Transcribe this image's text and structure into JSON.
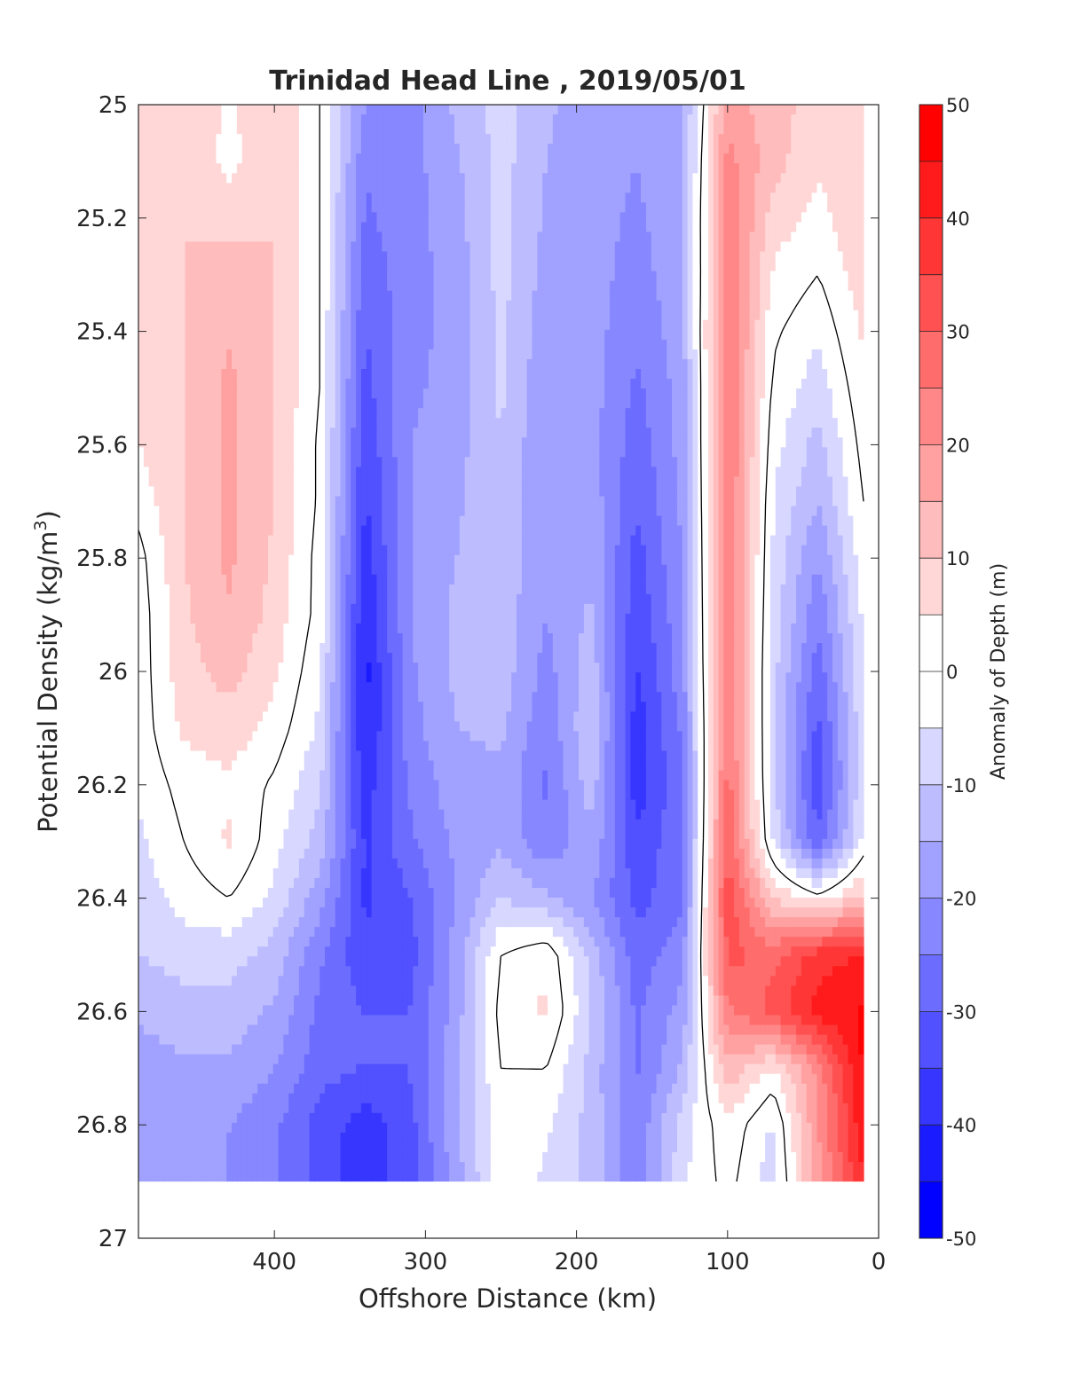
{
  "chart_data": {
    "type": "heatmap",
    "subtype": "filled-contour",
    "title": "Trinidad Head Line , 2019/05/01",
    "xlabel": "Offshore Distance (km)",
    "ylabel_main": "Potential Density (kg/m",
    "ylabel_sup": "3",
    "ylabel_tail": ")",
    "xlim": [
      490,
      0
    ],
    "x_reversed": true,
    "ylim": [
      25,
      27
    ],
    "y_reversed": true,
    "xticks": [
      400,
      300,
      200,
      100,
      0
    ],
    "yticks": [
      25,
      25.2,
      25.4,
      25.6,
      25.8,
      26,
      26.2,
      26.4,
      26.6,
      26.8,
      27
    ],
    "ytick_labels": [
      "25",
      "25.2",
      "25.4",
      "25.6",
      "25.8",
      "26",
      "26.2",
      "26.4",
      "26.6",
      "26.8",
      "27"
    ],
    "data_y_max": 26.9,
    "colorbar": {
      "label": "Anomaly of Depth (m)",
      "min": -50,
      "max": 50,
      "step": 5,
      "ticks": [
        50,
        40,
        30,
        20,
        10,
        0,
        -10,
        -20,
        -30,
        -40,
        -50
      ],
      "colormap": "blue-white-red",
      "low_color": "#0000ff",
      "mid_color": "#ffffff",
      "high_color": "#ff0000"
    },
    "contour_line_level": 0,
    "x": [
      490,
      460,
      430,
      400,
      370,
      340,
      310,
      280,
      250,
      220,
      190,
      160,
      130,
      100,
      70,
      40,
      10
    ],
    "y": [
      25.0,
      25.1,
      25.2,
      25.3,
      25.4,
      25.5,
      25.6,
      25.7,
      25.8,
      25.9,
      26.0,
      26.1,
      26.2,
      26.3,
      26.4,
      26.5,
      26.6,
      26.7,
      26.8,
      26.9
    ],
    "z": [
      [
        6,
        10,
        4,
        10,
        0,
        -20,
        -22,
        -14,
        -8,
        -14,
        -18,
        -20,
        -16,
        18,
        12,
        8,
        10
      ],
      [
        6,
        10,
        3,
        10,
        0,
        -24,
        -22,
        -16,
        -8,
        -15,
        -18,
        -20,
        -16,
        22,
        12,
        6,
        10
      ],
      [
        6,
        10,
        8,
        10,
        0,
        -26,
        -22,
        -17,
        -8,
        -16,
        -18,
        -21,
        -16,
        24,
        8,
        3,
        10
      ],
      [
        6,
        10,
        12,
        10,
        0,
        -28,
        -22,
        -18,
        -8,
        -17,
        -18,
        -22,
        -17,
        25,
        4,
        0,
        8
      ],
      [
        6,
        10,
        15,
        10,
        0,
        -30,
        -22,
        -18,
        -9,
        -18,
        -18,
        -24,
        -17,
        26,
        1,
        -4,
        6
      ],
      [
        6,
        10,
        16,
        10,
        0,
        -32,
        -21,
        -18,
        -9,
        -19,
        -18,
        -26,
        -18,
        26,
        -1,
        -8,
        4
      ],
      [
        5,
        10,
        16,
        10,
        -1,
        -34,
        -20,
        -17,
        -10,
        -20,
        -18,
        -28,
        -18,
        26,
        -3,
        -12,
        2
      ],
      [
        2,
        10,
        16,
        10,
        -1,
        -36,
        -20,
        -16,
        -10,
        -20,
        -17,
        -30,
        -19,
        26,
        -5,
        -15,
        0
      ],
      [
        -2,
        10,
        16,
        9,
        -2,
        -38,
        -20,
        -15,
        -11,
        -20,
        -16,
        -32,
        -20,
        26,
        -6,
        -20,
        -2
      ],
      [
        -3,
        9,
        15,
        8,
        -2,
        -40,
        -20,
        -14,
        -12,
        -20,
        -14,
        -34,
        -21,
        26,
        -7,
        -24,
        -4
      ],
      [
        -3,
        8,
        12,
        6,
        -4,
        -42,
        -21,
        -14,
        -12,
        -22,
        -12,
        -36,
        -22,
        26,
        -8,
        -28,
        -5
      ],
      [
        -3,
        6,
        8,
        3,
        -6,
        -41,
        -22,
        -15,
        -14,
        -24,
        -10,
        -38,
        -24,
        26,
        -8,
        -32,
        -6
      ],
      [
        -4,
        2,
        4,
        -1,
        -9,
        -38,
        -24,
        -17,
        -16,
        -26,
        -12,
        -38,
        -26,
        28,
        -8,
        -34,
        -6
      ],
      [
        -6,
        0,
        6,
        -3,
        -12,
        -36,
        -26,
        -19,
        -16,
        -24,
        -16,
        -34,
        -26,
        30,
        -6,
        -30,
        -4
      ],
      [
        -8,
        -3,
        0,
        -6,
        -18,
        -36,
        -30,
        -20,
        -10,
        -14,
        -20,
        -32,
        -26,
        34,
        10,
        2,
        12
      ],
      [
        -10,
        -8,
        -8,
        -12,
        -24,
        -34,
        -32,
        -18,
        0,
        4,
        -12,
        -28,
        -22,
        32,
        28,
        38,
        40
      ],
      [
        -14,
        -12,
        -12,
        -16,
        -26,
        -30,
        -30,
        -18,
        2,
        6,
        -10,
        -26,
        -18,
        24,
        32,
        42,
        46
      ],
      [
        -18,
        -16,
        -16,
        -20,
        -28,
        -30,
        -30,
        -16,
        0,
        0,
        -12,
        -26,
        -14,
        14,
        4,
        22,
        46
      ],
      [
        -18,
        -18,
        -20,
        -24,
        -32,
        -38,
        -32,
        -16,
        -2,
        -4,
        -12,
        -24,
        -8,
        4,
        -6,
        20,
        44
      ],
      [
        -18,
        -18,
        -20,
        -24,
        -32,
        -38,
        -32,
        -18,
        -2,
        -6,
        -12,
        -24,
        -6,
        2,
        -8,
        18,
        40
      ]
    ]
  }
}
